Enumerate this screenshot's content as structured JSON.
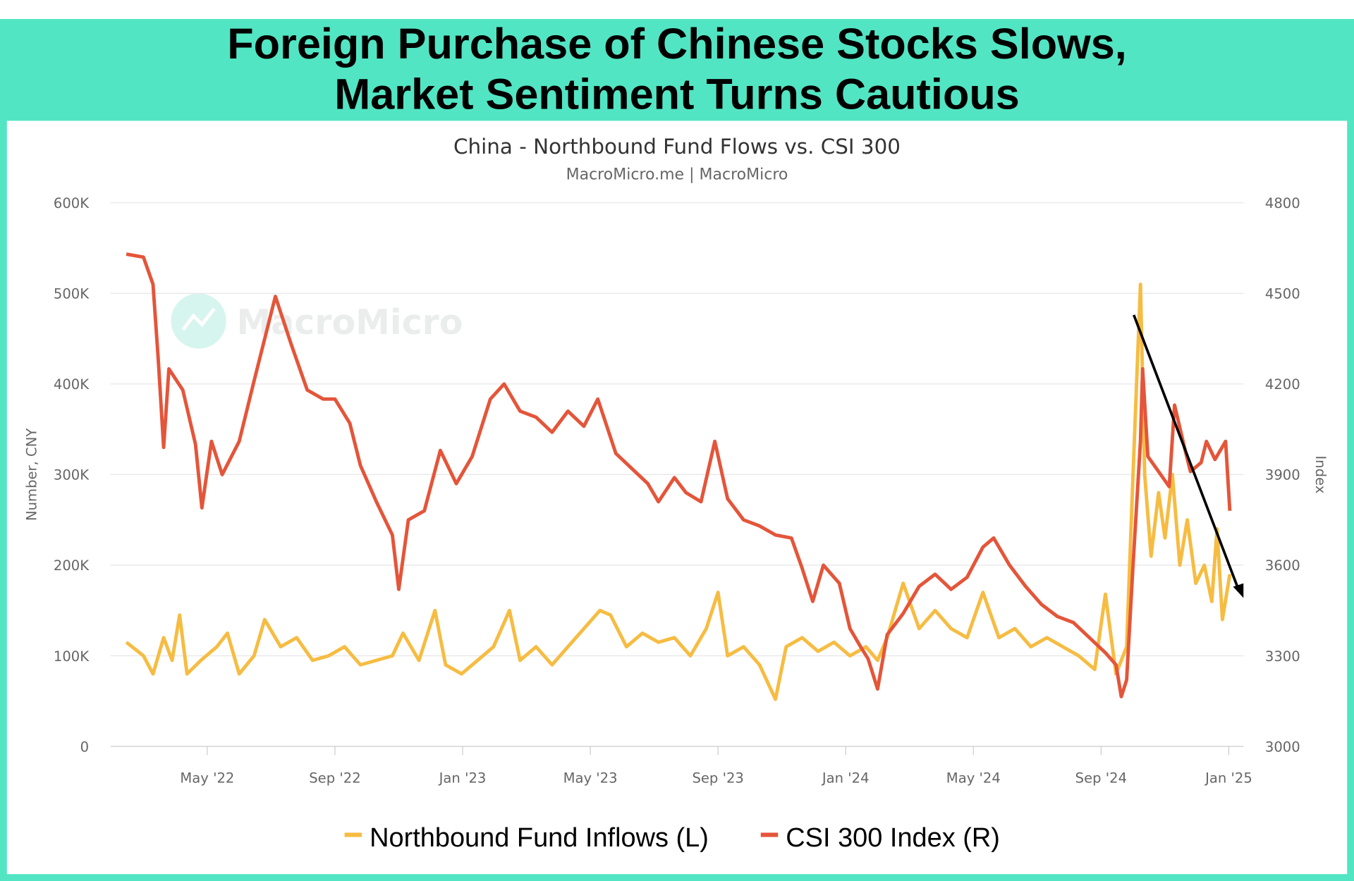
{
  "header": {
    "title_line1": "Foreign Purchase of Chinese Stocks Slows,",
    "title_line2": "Market Sentiment Turns Cautious"
  },
  "colors": {
    "frame": "#52E5C3",
    "inflows": "#F6BC42",
    "csi": "#E4553A",
    "arrow": "#000000"
  },
  "watermark": "MacroMicro",
  "chart_data": {
    "type": "line",
    "title": "China - Northbound Fund Flows vs. CSI 300",
    "subtitle": "MacroMicro.me | MacroMicro",
    "ylabel": "Number, CNY",
    "y2label": "Index",
    "ylim": [
      0,
      600000
    ],
    "y2lim": [
      3000,
      4800
    ],
    "yticks": [
      "0",
      "100K",
      "200K",
      "300K",
      "400K",
      "500K",
      "600K"
    ],
    "y2ticks": [
      "3000",
      "3300",
      "3600",
      "3900",
      "4200",
      "4500",
      "4800"
    ],
    "xticks": [
      "May '22",
      "Sep '22",
      "Jan '23",
      "May '23",
      "Sep '23",
      "Jan '24",
      "May '24",
      "Sep '24",
      "Jan '25"
    ],
    "grid": true,
    "legend_position": "bottom",
    "annotation": "downward trend arrow from Oct 2024 peak to Jan 2025",
    "series": [
      {
        "name": "Northbound Fund Inflows (L)",
        "axis": "left",
        "points": [
          [
            "2022-02-15",
            115000
          ],
          [
            "2022-03-01",
            100000
          ],
          [
            "2022-03-10",
            80000
          ],
          [
            "2022-03-20",
            120000
          ],
          [
            "2022-03-28",
            95000
          ],
          [
            "2022-04-05",
            145000
          ],
          [
            "2022-04-12",
            80000
          ],
          [
            "2022-04-25",
            95000
          ],
          [
            "2022-05-10",
            110000
          ],
          [
            "2022-05-20",
            125000
          ],
          [
            "2022-06-01",
            80000
          ],
          [
            "2022-06-15",
            100000
          ],
          [
            "2022-06-25",
            140000
          ],
          [
            "2022-07-10",
            110000
          ],
          [
            "2022-07-25",
            120000
          ],
          [
            "2022-08-10",
            95000
          ],
          [
            "2022-08-25",
            100000
          ],
          [
            "2022-09-10",
            110000
          ],
          [
            "2022-09-25",
            90000
          ],
          [
            "2022-10-10",
            95000
          ],
          [
            "2022-10-25",
            100000
          ],
          [
            "2022-11-05",
            125000
          ],
          [
            "2022-11-20",
            95000
          ],
          [
            "2022-12-05",
            150000
          ],
          [
            "2022-12-15",
            90000
          ],
          [
            "2022-12-30",
            80000
          ],
          [
            "2023-01-15",
            95000
          ],
          [
            "2023-01-30",
            110000
          ],
          [
            "2023-02-15",
            150000
          ],
          [
            "2023-02-25",
            95000
          ],
          [
            "2023-03-10",
            110000
          ],
          [
            "2023-03-25",
            90000
          ],
          [
            "2023-04-10",
            110000
          ],
          [
            "2023-04-25",
            130000
          ],
          [
            "2023-05-10",
            150000
          ],
          [
            "2023-05-20",
            145000
          ],
          [
            "2023-06-05",
            110000
          ],
          [
            "2023-06-20",
            125000
          ],
          [
            "2023-07-05",
            115000
          ],
          [
            "2023-07-20",
            120000
          ],
          [
            "2023-08-05",
            100000
          ],
          [
            "2023-08-20",
            130000
          ],
          [
            "2023-09-01",
            170000
          ],
          [
            "2023-09-10",
            100000
          ],
          [
            "2023-09-25",
            110000
          ],
          [
            "2023-10-10",
            90000
          ],
          [
            "2023-10-25",
            52000
          ],
          [
            "2023-11-05",
            110000
          ],
          [
            "2023-11-20",
            120000
          ],
          [
            "2023-12-05",
            105000
          ],
          [
            "2023-12-20",
            115000
          ],
          [
            "2024-01-05",
            100000
          ],
          [
            "2024-01-20",
            110000
          ],
          [
            "2024-02-01",
            95000
          ],
          [
            "2024-02-10",
            120000
          ],
          [
            "2024-02-25",
            180000
          ],
          [
            "2024-03-10",
            130000
          ],
          [
            "2024-03-25",
            150000
          ],
          [
            "2024-04-10",
            130000
          ],
          [
            "2024-04-25",
            120000
          ],
          [
            "2024-05-10",
            170000
          ],
          [
            "2024-05-25",
            120000
          ],
          [
            "2024-06-10",
            130000
          ],
          [
            "2024-06-25",
            110000
          ],
          [
            "2024-07-10",
            120000
          ],
          [
            "2024-07-25",
            110000
          ],
          [
            "2024-08-10",
            100000
          ],
          [
            "2024-08-25",
            85000
          ],
          [
            "2024-09-05",
            168000
          ],
          [
            "2024-09-15",
            80000
          ],
          [
            "2024-09-25",
            110000
          ],
          [
            "2024-10-01",
            300000
          ],
          [
            "2024-10-08",
            510000
          ],
          [
            "2024-10-12",
            300000
          ],
          [
            "2024-10-18",
            210000
          ],
          [
            "2024-10-25",
            280000
          ],
          [
            "2024-11-01",
            230000
          ],
          [
            "2024-11-08",
            300000
          ],
          [
            "2024-11-15",
            200000
          ],
          [
            "2024-11-22",
            250000
          ],
          [
            "2024-11-30",
            180000
          ],
          [
            "2024-12-08",
            200000
          ],
          [
            "2024-12-15",
            160000
          ],
          [
            "2024-12-20",
            240000
          ],
          [
            "2024-12-25",
            140000
          ],
          [
            "2025-01-02",
            190000
          ]
        ]
      },
      {
        "name": "CSI 300 Index (R)",
        "axis": "right",
        "points": [
          [
            "2022-02-15",
            4630
          ],
          [
            "2022-03-01",
            4620
          ],
          [
            "2022-03-10",
            4530
          ],
          [
            "2022-03-15",
            4280
          ],
          [
            "2022-03-20",
            3990
          ],
          [
            "2022-03-25",
            4250
          ],
          [
            "2022-04-08",
            4180
          ],
          [
            "2022-04-20",
            4000
          ],
          [
            "2022-04-26",
            3790
          ],
          [
            "2022-05-05",
            4010
          ],
          [
            "2022-05-15",
            3900
          ],
          [
            "2022-05-31",
            4010
          ],
          [
            "2022-06-15",
            4210
          ],
          [
            "2022-07-05",
            4490
          ],
          [
            "2022-07-20",
            4330
          ],
          [
            "2022-08-05",
            4180
          ],
          [
            "2022-08-20",
            4150
          ],
          [
            "2022-09-01",
            4150
          ],
          [
            "2022-09-15",
            4070
          ],
          [
            "2022-09-25",
            3930
          ],
          [
            "2022-10-10",
            3810
          ],
          [
            "2022-10-25",
            3700
          ],
          [
            "2022-10-31",
            3520
          ],
          [
            "2022-11-10",
            3750
          ],
          [
            "2022-11-25",
            3780
          ],
          [
            "2022-12-10",
            3980
          ],
          [
            "2022-12-25",
            3870
          ],
          [
            "2023-01-10",
            3960
          ],
          [
            "2023-01-27",
            4150
          ],
          [
            "2023-02-10",
            4200
          ],
          [
            "2023-02-25",
            4110
          ],
          [
            "2023-03-10",
            4090
          ],
          [
            "2023-03-25",
            4040
          ],
          [
            "2023-04-10",
            4110
          ],
          [
            "2023-04-25",
            4060
          ],
          [
            "2023-05-08",
            4150
          ],
          [
            "2023-05-25",
            3970
          ],
          [
            "2023-06-10",
            3920
          ],
          [
            "2023-06-25",
            3870
          ],
          [
            "2023-07-05",
            3810
          ],
          [
            "2023-07-20",
            3890
          ],
          [
            "2023-07-31",
            3840
          ],
          [
            "2023-08-15",
            3810
          ],
          [
            "2023-08-28",
            4010
          ],
          [
            "2023-09-10",
            3820
          ],
          [
            "2023-09-25",
            3750
          ],
          [
            "2023-10-10",
            3730
          ],
          [
            "2023-10-25",
            3700
          ],
          [
            "2023-11-10",
            3690
          ],
          [
            "2023-11-20",
            3590
          ],
          [
            "2023-11-30",
            3480
          ],
          [
            "2023-12-10",
            3600
          ],
          [
            "2023-12-25",
            3540
          ],
          [
            "2024-01-05",
            3390
          ],
          [
            "2024-01-15",
            3330
          ],
          [
            "2024-01-22",
            3290
          ],
          [
            "2024-02-01",
            3190
          ],
          [
            "2024-02-10",
            3370
          ],
          [
            "2024-02-25",
            3440
          ],
          [
            "2024-03-10",
            3530
          ],
          [
            "2024-03-25",
            3570
          ],
          [
            "2024-04-10",
            3520
          ],
          [
            "2024-04-25",
            3560
          ],
          [
            "2024-05-10",
            3660
          ],
          [
            "2024-05-20",
            3690
          ],
          [
            "2024-06-05",
            3600
          ],
          [
            "2024-06-20",
            3530
          ],
          [
            "2024-07-05",
            3470
          ],
          [
            "2024-07-20",
            3430
          ],
          [
            "2024-08-05",
            3410
          ],
          [
            "2024-08-20",
            3360
          ],
          [
            "2024-09-05",
            3310
          ],
          [
            "2024-09-15",
            3270
          ],
          [
            "2024-09-20",
            3165
          ],
          [
            "2024-09-25",
            3220
          ],
          [
            "2024-10-01",
            3600
          ],
          [
            "2024-10-08",
            4010
          ],
          [
            "2024-10-10",
            4250
          ],
          [
            "2024-10-15",
            3960
          ],
          [
            "2024-10-25",
            3910
          ],
          [
            "2024-11-05",
            3860
          ],
          [
            "2024-11-10",
            4130
          ],
          [
            "2024-11-20",
            3980
          ],
          [
            "2024-11-25",
            3910
          ],
          [
            "2024-12-05",
            3940
          ],
          [
            "2024-12-10",
            4010
          ],
          [
            "2024-12-18",
            3950
          ],
          [
            "2024-12-28",
            4010
          ],
          [
            "2025-01-02",
            3780
          ]
        ]
      }
    ]
  }
}
